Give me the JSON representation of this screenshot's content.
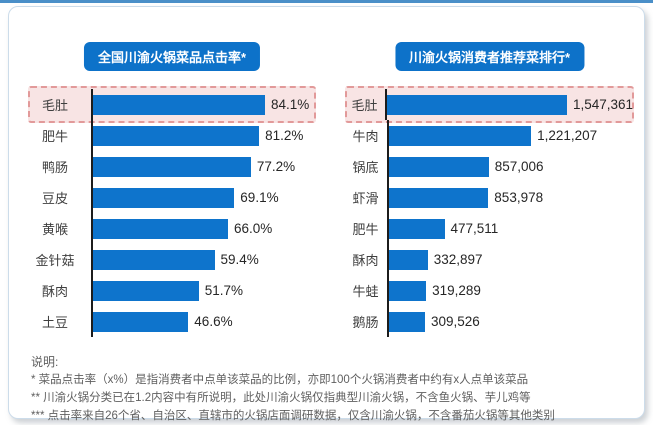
{
  "page": {
    "accent_blue": "#0d72c9",
    "bar_color": "#0e74cc",
    "highlight_border_color": "#e29a9a",
    "highlight_bg_color": "#f8e4e4",
    "top_line_color": "#4a8fc8"
  },
  "chart_data": [
    {
      "type": "bar",
      "orientation": "horizontal",
      "title": "全国川渝火锅菜品点击率*",
      "categories": [
        "毛肚",
        "肥牛",
        "鸭肠",
        "豆皮",
        "黄喉",
        "金针菇",
        "酥肉",
        "土豆"
      ],
      "values": [
        84.1,
        81.2,
        77.2,
        69.1,
        66.0,
        59.4,
        51.7,
        46.6
      ],
      "value_labels": [
        "84.1%",
        "81.2%",
        "77.2%",
        "69.1%",
        "66.0%",
        "59.4%",
        "51.7%",
        "46.6%"
      ],
      "unit": "percent",
      "xlim": [
        0,
        100
      ],
      "highlight_index": 0,
      "grid": false,
      "legend": "none"
    },
    {
      "type": "bar",
      "orientation": "horizontal",
      "title": "川渝火锅消费者推荐菜排行*",
      "categories": [
        "毛肚",
        "牛肉",
        "锅底",
        "虾滑",
        "肥牛",
        "酥肉",
        "牛蛙",
        "鹅肠"
      ],
      "values": [
        1547361,
        1221207,
        857006,
        853978,
        477511,
        332897,
        319289,
        309526
      ],
      "value_labels": [
        "1,547,361",
        "1,221,207",
        "857,006",
        "853,978",
        "477,511",
        "332,897",
        "319,289",
        "309,526"
      ],
      "unit": "count",
      "highlight_index": 0,
      "grid": false,
      "legend": "none"
    }
  ],
  "notes": {
    "heading": "说明:",
    "lines": [
      "* 菜品点击率（x%）是指消费者中点单该菜品的比例，亦即100个火锅消费者中约有x人点单该菜品",
      "** 川渝火锅分类已在1.2内容中有所说明，此处川渝火锅仅指典型川渝火锅，不含鱼火锅、芋儿鸡等",
      "*** 点击率来自26个省、自治区、直辖市的火锅店面调研数据，仅含川渝火锅，不含番茄火锅等其他类别"
    ]
  }
}
